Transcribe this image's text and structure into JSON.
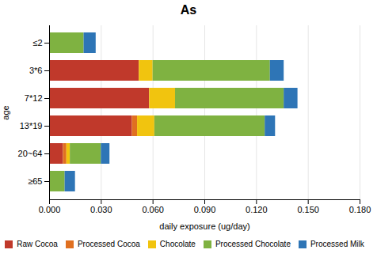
{
  "chart_data": {
    "type": "bar",
    "orientation": "horizontal",
    "stacked": true,
    "title": "As",
    "xlabel": "daily exposure (ug/day)",
    "ylabel": "age",
    "categories": [
      "≥65",
      "20~64",
      "13*19",
      "7*12",
      "3*6",
      "≤2"
    ],
    "series": [
      {
        "name": "Raw Cocoa",
        "color": "#C0392B",
        "values": [
          0.0,
          0.008,
          0.048,
          0.058,
          0.052,
          0.0
        ]
      },
      {
        "name": "Processed Cocoa",
        "color": "#E07020",
        "values": [
          0.0,
          0.002,
          0.003,
          0.0,
          0.0,
          0.0
        ]
      },
      {
        "name": "Chocolate",
        "color": "#F1C40F",
        "values": [
          0.0,
          0.002,
          0.01,
          0.015,
          0.008,
          0.0
        ]
      },
      {
        "name": "Processed Chocolate",
        "color": "#7FB241",
        "values": [
          0.009,
          0.018,
          0.064,
          0.063,
          0.068,
          0.02
        ]
      },
      {
        "name": "Processed Milk",
        "color": "#2E75B6",
        "values": [
          0.006,
          0.005,
          0.006,
          0.008,
          0.008,
          0.007
        ]
      }
    ],
    "xlim": [
      0.0,
      0.18
    ],
    "xticks": [
      {
        "value": 0.0,
        "label": "0.000"
      },
      {
        "value": 0.03,
        "label": "0.030"
      },
      {
        "value": 0.06,
        "label": "0.060"
      },
      {
        "value": 0.09,
        "label": "0.090"
      },
      {
        "value": 0.12,
        "label": "0.120"
      },
      {
        "value": 0.15,
        "label": "0.150"
      },
      {
        "value": 0.18,
        "label": "0.180"
      }
    ],
    "grid": true,
    "legend": "bottom"
  }
}
